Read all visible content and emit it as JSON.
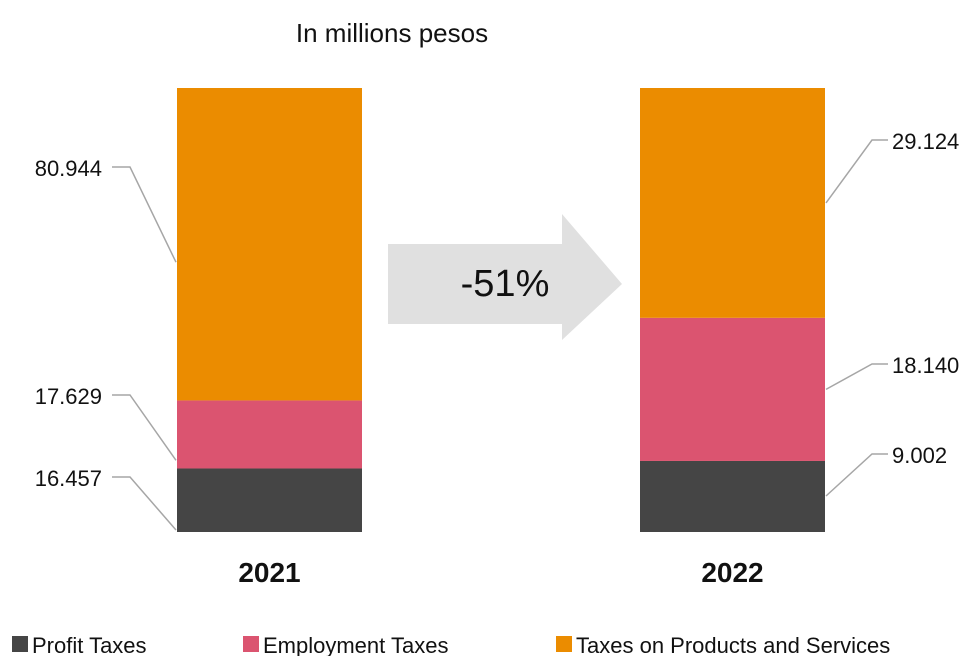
{
  "chart_data": {
    "type": "bar",
    "stacked": true,
    "title": "In millions pesos",
    "categories": [
      "2021",
      "2022"
    ],
    "series": [
      {
        "name": "Profit Taxes",
        "values": [
          16.457,
          9.002
        ],
        "color": "#454545"
      },
      {
        "name": "Employment Taxes",
        "values": [
          17.629,
          18.14
        ],
        "color": "#db5470"
      },
      {
        "name": "Taxes on Products and Services",
        "values": [
          80.944,
          29.124
        ],
        "color": "#eb8c00"
      }
    ],
    "value_labels": [
      [
        "16.457",
        "9.002"
      ],
      [
        "17.629",
        "18.140"
      ],
      [
        "80.944",
        "29.124"
      ]
    ],
    "annotation": {
      "text": "-51%",
      "shape": "right-arrow",
      "color": "#e0e0e0"
    },
    "legend_position": "bottom",
    "grid": false
  }
}
